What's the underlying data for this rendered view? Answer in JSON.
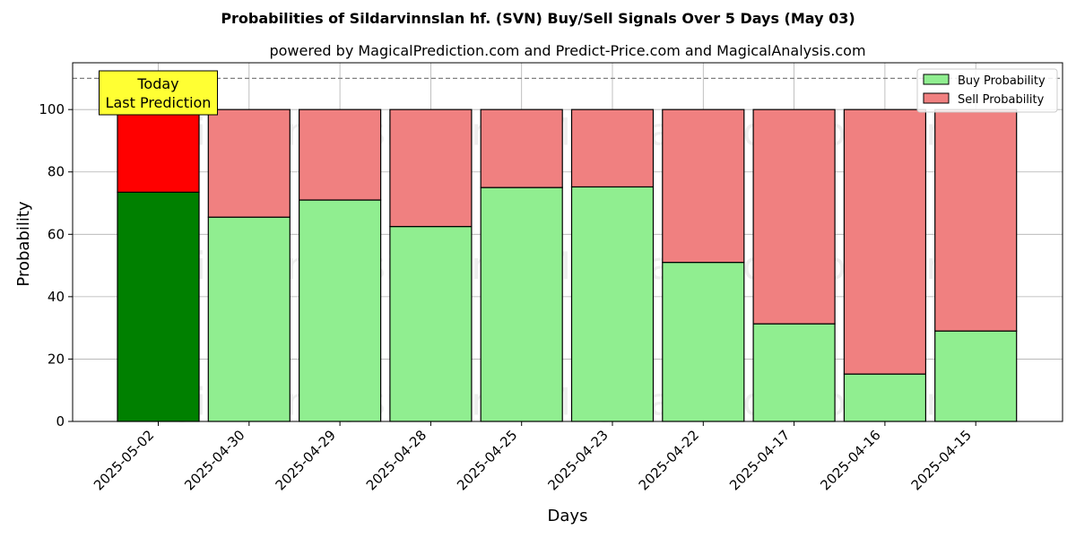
{
  "chart_data": {
    "type": "bar",
    "stacked": true,
    "title": "Probabilities of Sildarvinnslan hf. (SVN) Buy/Sell Signals Over 5 Days (May 03)",
    "subtitle": "powered by MagicalPrediction.com and Predict-Price.com and MagicalAnalysis.com",
    "xlabel": "Days",
    "ylabel": "Probability",
    "ylim": [
      0,
      115
    ],
    "yticks": [
      0,
      20,
      40,
      60,
      80,
      100
    ],
    "reference_line": 110,
    "grid": true,
    "legend_position": "top-right",
    "categories": [
      "2025-05-02",
      "2025-04-30",
      "2025-04-29",
      "2025-04-28",
      "2025-04-25",
      "2025-04-23",
      "2025-04-22",
      "2025-04-17",
      "2025-04-16",
      "2025-04-15"
    ],
    "series": [
      {
        "name": "Buy Probability",
        "values": [
          73.5,
          65.5,
          71.0,
          62.5,
          75.0,
          75.2,
          51.0,
          31.3,
          15.2,
          29.0
        ],
        "color": "#90ee90",
        "highlight_color": "#008000"
      },
      {
        "name": "Sell Probability",
        "values": [
          26.5,
          34.5,
          29.0,
          37.5,
          25.0,
          24.8,
          49.0,
          68.7,
          84.8,
          71.0
        ],
        "color": "#f08080",
        "highlight_color": "#ff0000"
      }
    ],
    "highlight_index": 0,
    "annotation": {
      "line1": "Today",
      "line2": "Last Prediction",
      "bg": "#ffff33"
    },
    "watermarks": [
      "MagicalAnalysis.com",
      "MagicalPrediction.com"
    ]
  }
}
